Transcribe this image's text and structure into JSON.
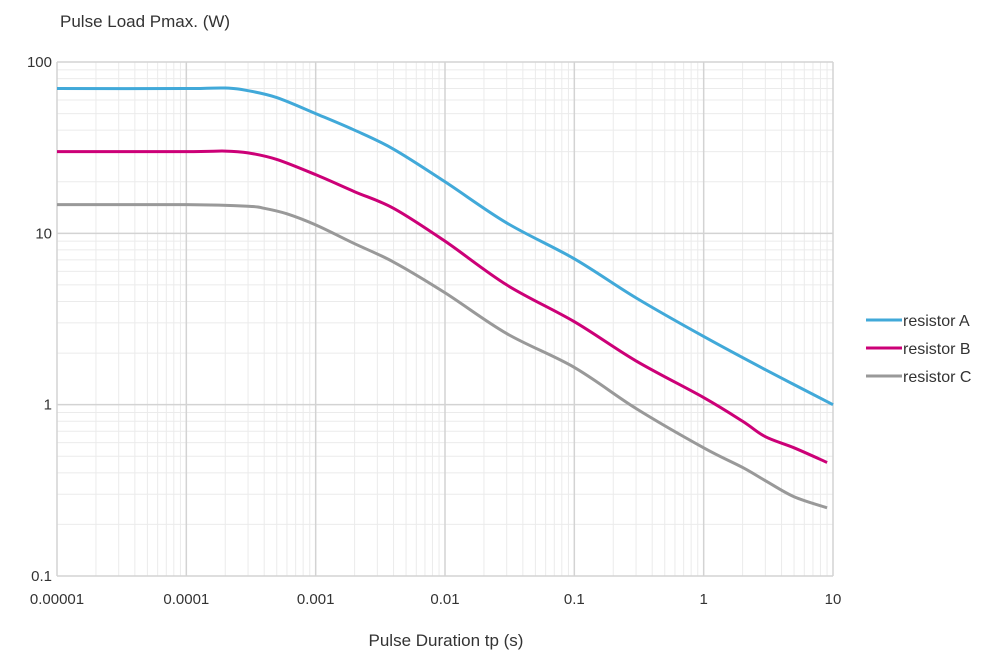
{
  "chart_data": {
    "type": "line",
    "ylabel": "Pulse Load Pmax. (W)",
    "xlabel": "Pulse Duration tp (s)",
    "x_scale": "log",
    "y_scale": "log",
    "xlim": [
      1e-05,
      10
    ],
    "ylim": [
      0.1,
      100
    ],
    "x_ticks": [
      1e-05,
      0.0001,
      0.001,
      0.01,
      0.1,
      1,
      10
    ],
    "x_tick_labels": [
      "0.00001",
      "0.0001",
      "0.001",
      "0.01",
      "0.1",
      "1",
      "10"
    ],
    "y_ticks": [
      0.1,
      1,
      10,
      100
    ],
    "y_tick_labels": [
      "0.1",
      "1",
      "10",
      "100"
    ],
    "grid": true,
    "legend_position": "right",
    "series": [
      {
        "name": "resistor A",
        "color": "#41A9D9",
        "points": [
          [
            1e-05,
            70
          ],
          [
            0.0001,
            70
          ],
          [
            0.0002,
            70.5
          ],
          [
            0.0003,
            68
          ],
          [
            0.0005,
            62
          ],
          [
            0.001,
            50
          ],
          [
            0.002,
            40
          ],
          [
            0.004,
            31
          ],
          [
            0.01,
            20
          ],
          [
            0.03,
            11.5
          ],
          [
            0.1,
            7.1
          ],
          [
            0.3,
            4.2
          ],
          [
            1,
            2.5
          ],
          [
            3,
            1.6
          ],
          [
            10,
            1.0
          ]
        ]
      },
      {
        "name": "resistor B",
        "color": "#CC0077",
        "points": [
          [
            1e-05,
            30
          ],
          [
            0.0001,
            30
          ],
          [
            0.0002,
            30.2
          ],
          [
            0.0003,
            29.5
          ],
          [
            0.0005,
            27
          ],
          [
            0.001,
            22
          ],
          [
            0.002,
            17.5
          ],
          [
            0.004,
            14
          ],
          [
            0.01,
            9
          ],
          [
            0.03,
            5
          ],
          [
            0.1,
            3.05
          ],
          [
            0.3,
            1.8
          ],
          [
            1,
            1.1
          ],
          [
            2,
            0.8
          ],
          [
            3,
            0.65
          ],
          [
            5,
            0.56
          ],
          [
            9,
            0.46
          ]
        ]
      },
      {
        "name": "resistor C",
        "color": "#999999",
        "points": [
          [
            1e-05,
            14.7
          ],
          [
            0.0001,
            14.7
          ],
          [
            0.0003,
            14.4
          ],
          [
            0.0004,
            14
          ],
          [
            0.0006,
            13
          ],
          [
            0.001,
            11.2
          ],
          [
            0.002,
            8.7
          ],
          [
            0.004,
            6.8
          ],
          [
            0.01,
            4.5
          ],
          [
            0.03,
            2.6
          ],
          [
            0.1,
            1.65
          ],
          [
            0.3,
            0.95
          ],
          [
            1,
            0.56
          ],
          [
            2,
            0.43
          ],
          [
            3,
            0.36
          ],
          [
            5,
            0.29
          ],
          [
            9,
            0.25
          ]
        ]
      }
    ]
  }
}
